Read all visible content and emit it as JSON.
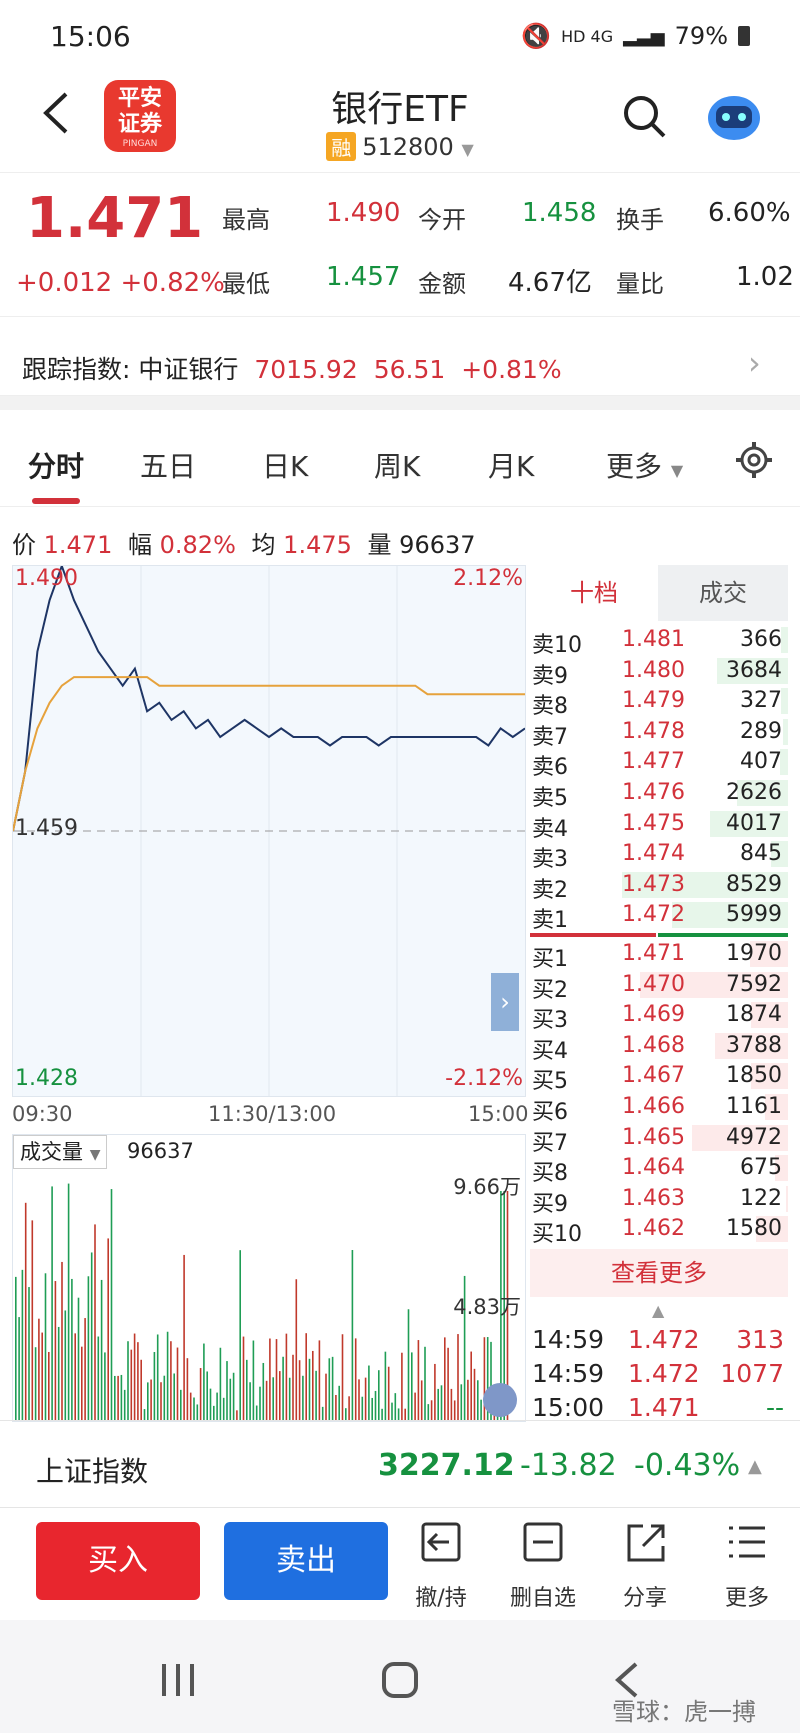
{
  "status_bar": {
    "time": "15:06",
    "network": "HD 4G",
    "battery": "79%"
  },
  "header": {
    "title": "银行ETF",
    "badge": "融",
    "code": "512800",
    "logo_line1": "平安",
    "logo_line2": "证券",
    "logo_en": "PINGAN"
  },
  "quote": {
    "price": "1.471",
    "change": "+0.012",
    "change_pct": "+0.82%",
    "high_label": "最高",
    "high": "1.490",
    "open_label": "今开",
    "open": "1.458",
    "turnover_label": "换手",
    "turnover": "6.60%",
    "low_label": "最低",
    "low": "1.457",
    "amount_label": "金额",
    "amount": "4.67亿",
    "ratio_label": "量比",
    "ratio": "1.02"
  },
  "tracking": {
    "label": "跟踪指数:",
    "index": "中证银行",
    "value": "7015.92",
    "change": "56.51",
    "pct": "+0.81%"
  },
  "tabs": [
    {
      "label": "分时"
    },
    {
      "label": "五日"
    },
    {
      "label": "日K"
    },
    {
      "label": "周K"
    },
    {
      "label": "月K"
    },
    {
      "label": "更多"
    }
  ],
  "info": {
    "price_label": "价",
    "price": "1.471",
    "range_label": "幅",
    "range": "0.82%",
    "avg_label": "均",
    "avg": "1.475",
    "vol_label": "量",
    "vol": "96637"
  },
  "chart_data": {
    "type": "line",
    "y_top": "1.490",
    "y_mid": "1.459",
    "y_bottom": "1.428",
    "pct_top": "2.12%",
    "pct_bottom": "-2.12%",
    "x_labels": [
      "09:30",
      "11:30/13:00",
      "15:00"
    ],
    "ylim": [
      1.428,
      1.49
    ],
    "series": [
      {
        "values": [
          1.459,
          1.466,
          1.48,
          1.486,
          1.49,
          1.486,
          1.483,
          1.48,
          1.478,
          1.476,
          1.478,
          1.473,
          1.474,
          1.472,
          1.473,
          1.471,
          1.472,
          1.47,
          1.471,
          1.472,
          1.471,
          1.47,
          1.471,
          1.47,
          1.47,
          1.47,
          1.469,
          1.47,
          1.47,
          1.47,
          1.469,
          1.47,
          1.47,
          1.47,
          1.47,
          1.47,
          1.47,
          1.47,
          1.47,
          1.469,
          1.471,
          1.47,
          1.471
        ]
      },
      {
        "values": [
          1.459,
          1.466,
          1.471,
          1.474,
          1.476,
          1.477,
          1.477,
          1.477,
          1.477,
          1.477,
          1.477,
          1.477,
          1.476,
          1.476,
          1.476,
          1.476,
          1.476,
          1.476,
          1.476,
          1.476,
          1.476,
          1.476,
          1.476,
          1.476,
          1.476,
          1.476,
          1.476,
          1.476,
          1.476,
          1.476,
          1.476,
          1.476,
          1.476,
          1.476,
          1.475,
          1.475,
          1.475,
          1.475,
          1.475,
          1.475,
          1.475,
          1.475,
          1.475
        ]
      }
    ]
  },
  "volume": {
    "label": "成交量",
    "value": "96637",
    "max_label": "9.66万",
    "mid_label": "4.83万"
  },
  "orderbook": {
    "tab_levels": "十档",
    "tab_trades": "成交",
    "asks": [
      {
        "label": "卖10",
        "price": "1.481",
        "vol": "366",
        "depth": 0.04
      },
      {
        "label": "卖9",
        "price": "1.480",
        "vol": "3684",
        "depth": 0.43
      },
      {
        "label": "卖8",
        "price": "1.479",
        "vol": "327",
        "depth": 0.04
      },
      {
        "label": "卖7",
        "price": "1.478",
        "vol": "289",
        "depth": 0.03
      },
      {
        "label": "卖6",
        "price": "1.477",
        "vol": "407",
        "depth": 0.05
      },
      {
        "label": "卖5",
        "price": "1.476",
        "vol": "2626",
        "depth": 0.31
      },
      {
        "label": "卖4",
        "price": "1.475",
        "vol": "4017",
        "depth": 0.47
      },
      {
        "label": "卖3",
        "price": "1.474",
        "vol": "845",
        "depth": 0.1
      },
      {
        "label": "卖2",
        "price": "1.473",
        "vol": "8529",
        "depth": 1.0
      },
      {
        "label": "卖1",
        "price": "1.472",
        "vol": "5999",
        "depth": 0.7
      }
    ],
    "bids": [
      {
        "label": "买1",
        "price": "1.471",
        "vol": "1970",
        "depth": 0.23
      },
      {
        "label": "买2",
        "price": "1.470",
        "vol": "7592",
        "depth": 0.89
      },
      {
        "label": "买3",
        "price": "1.469",
        "vol": "1874",
        "depth": 0.22
      },
      {
        "label": "买4",
        "price": "1.468",
        "vol": "3788",
        "depth": 0.44
      },
      {
        "label": "买5",
        "price": "1.467",
        "vol": "1850",
        "depth": 0.22
      },
      {
        "label": "买6",
        "price": "1.466",
        "vol": "1161",
        "depth": 0.14
      },
      {
        "label": "买7",
        "price": "1.465",
        "vol": "4972",
        "depth": 0.58
      },
      {
        "label": "买8",
        "price": "1.464",
        "vol": "675",
        "depth": 0.08
      },
      {
        "label": "买9",
        "price": "1.463",
        "vol": "122",
        "depth": 0.01
      },
      {
        "label": "买10",
        "price": "1.462",
        "vol": "1580",
        "depth": 0.19
      }
    ],
    "more": "查看更多",
    "trades": [
      {
        "time": "14:59",
        "price": "1.472",
        "vol": "313"
      },
      {
        "time": "14:59",
        "price": "1.472",
        "vol": "1077"
      },
      {
        "time": "15:00",
        "price": "1.471",
        "vol": "--"
      }
    ]
  },
  "market_index": {
    "name": "上证指数",
    "value": "3227.12",
    "change": "-13.82",
    "pct": "-0.43%"
  },
  "actions": {
    "buy": "买入",
    "sell": "卖出",
    "cancel": "撤/持",
    "remove": "删自选",
    "share": "分享",
    "more": "更多"
  },
  "watermark": "雪球：虎一搏"
}
